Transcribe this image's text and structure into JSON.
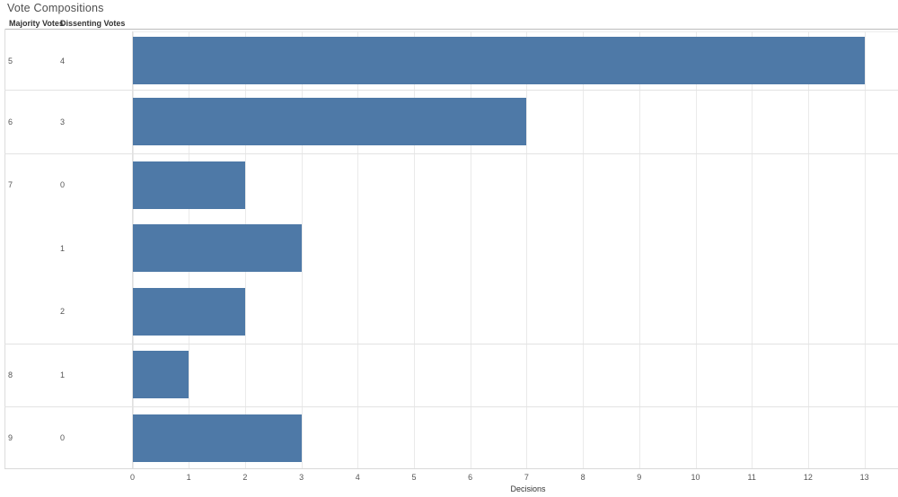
{
  "title": "Vote Compositions",
  "columns": {
    "majority": "Majority Votes",
    "dissenting": "Dissenting Votes"
  },
  "axis": {
    "label": "Decisions"
  },
  "colors": {
    "bar": "#4e79a7",
    "gridline": "#eaeaea",
    "separator": "#e3e3e3",
    "title_text": "#4e4e4e",
    "header_text": "#333333",
    "label_text": "#555555"
  },
  "chart_data": {
    "type": "bar",
    "orientation": "horizontal",
    "title": "Vote Compositions",
    "row_headers": [
      "Majority Votes",
      "Dissenting Votes"
    ],
    "xlabel": "Decisions",
    "xlim": [
      0,
      13.6
    ],
    "xticks": [
      "0",
      "1",
      "2",
      "3",
      "4",
      "5",
      "6",
      "7",
      "8",
      "9",
      "10",
      "11",
      "12",
      "13"
    ],
    "grid": true,
    "legend": false,
    "bar_color": "#4e79a7",
    "rows": [
      {
        "majority": "5",
        "dissenting": "4",
        "decisions": 13
      },
      {
        "majority": "6",
        "dissenting": "3",
        "decisions": 7
      },
      {
        "majority": "7",
        "dissenting": "0",
        "decisions": 2
      },
      {
        "majority": "7",
        "dissenting": "1",
        "decisions": 3
      },
      {
        "majority": "7",
        "dissenting": "2",
        "decisions": 2
      },
      {
        "majority": "8",
        "dissenting": "1",
        "decisions": 1
      },
      {
        "majority": "9",
        "dissenting": "0",
        "decisions": 3
      }
    ]
  }
}
